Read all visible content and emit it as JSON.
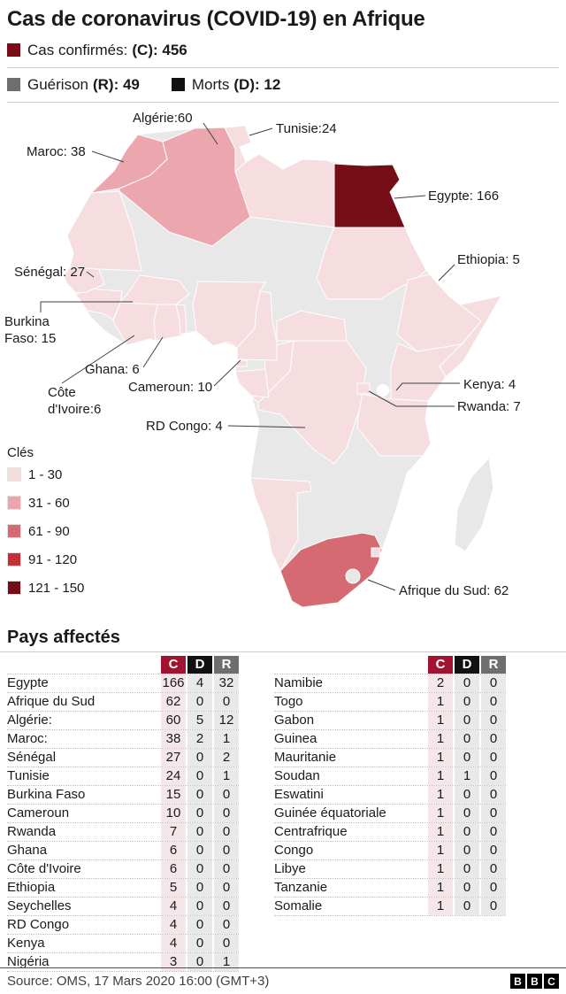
{
  "header": {
    "title": "Cas de coronavirus (COVID-19) en Afrique",
    "stats": [
      {
        "label": "Cas confirmés:",
        "bold": "(C): 456",
        "swatch": "#7d0b16"
      },
      {
        "label": "Guérison",
        "bold": "(R): 49",
        "swatch": "#6e6e6e"
      },
      {
        "label": "Morts",
        "bold": "(D): 12",
        "swatch": "#111111"
      }
    ]
  },
  "map": {
    "labels": [
      {
        "id": "algerie",
        "text": "Algérie:60"
      },
      {
        "id": "tunisie",
        "text": "Tunisie:24"
      },
      {
        "id": "maroc",
        "text": "Maroc: 38"
      },
      {
        "id": "egypte",
        "text": "Egypte: 166"
      },
      {
        "id": "ethiopia",
        "text": "Ethiopia: 5"
      },
      {
        "id": "senegal",
        "text": "Sénégal: 27"
      },
      {
        "id": "burkina",
        "text": "Burkina\nFaso: 15"
      },
      {
        "id": "ghana",
        "text": "Ghana: 6"
      },
      {
        "id": "cote-divoire",
        "text": "Côte\nd'Ivoire:6"
      },
      {
        "id": "cameroun",
        "text": "Cameroun: 10"
      },
      {
        "id": "rd-congo",
        "text": "RD Congo: 4"
      },
      {
        "id": "kenya",
        "text": "Kenya: 4"
      },
      {
        "id": "rwanda",
        "text": "Rwanda: 7"
      },
      {
        "id": "afrique-du-sud",
        "text": "Afrique du Sud: 62"
      }
    ]
  },
  "legend": {
    "title": "Clés",
    "items": [
      {
        "range": "1 - 30",
        "min": 1,
        "max": 30,
        "color": "#f5dde0"
      },
      {
        "range": "31 - 60",
        "min": 31,
        "max": 60,
        "color": "#eba6ae"
      },
      {
        "range": "61 - 90",
        "min": 61,
        "max": 90,
        "color": "#d66a72"
      },
      {
        "range": "91 - 120",
        "min": 91,
        "max": 120,
        "color": "#c52f38"
      },
      {
        "range": "121 - 150",
        "min": 121,
        "max": 150,
        "color": "#740d15"
      }
    ]
  },
  "table_section": {
    "title": "Pays affectés",
    "columns": [
      "C",
      "D",
      "R"
    ],
    "header_colors": [
      "#a01431",
      "#111111",
      "#6e6e6e"
    ],
    "left_rows": [
      {
        "country": "Egypte",
        "c": 166,
        "d": 4,
        "r": 32
      },
      {
        "country": "Afrique du Sud",
        "c": 62,
        "d": 0,
        "r": 0
      },
      {
        "country": "Algérie:",
        "c": 60,
        "d": 5,
        "r": 12
      },
      {
        "country": "Maroc:",
        "c": 38,
        "d": 2,
        "r": 1
      },
      {
        "country": "Sénégal",
        "c": 27,
        "d": 0,
        "r": 2
      },
      {
        "country": "Tunisie",
        "c": 24,
        "d": 0,
        "r": 1
      },
      {
        "country": "Burkina Faso",
        "c": 15,
        "d": 0,
        "r": 0
      },
      {
        "country": "Cameroun",
        "c": 10,
        "d": 0,
        "r": 0
      },
      {
        "country": "Rwanda",
        "c": 7,
        "d": 0,
        "r": 0
      },
      {
        "country": "Ghana",
        "c": 6,
        "d": 0,
        "r": 0
      },
      {
        "country": "Côte d'Ivoire",
        "c": 6,
        "d": 0,
        "r": 0
      },
      {
        "country": "Ethiopia",
        "c": 5,
        "d": 0,
        "r": 0
      },
      {
        "country": "Seychelles",
        "c": 4,
        "d": 0,
        "r": 0
      },
      {
        "country": "RD Congo",
        "c": 4,
        "d": 0,
        "r": 0
      },
      {
        "country": "Kenya",
        "c": 4,
        "d": 0,
        "r": 0
      },
      {
        "country": "Nigéria",
        "c": 3,
        "d": 0,
        "r": 1
      }
    ],
    "right_rows": [
      {
        "country": "Namibie",
        "c": 2,
        "d": 0,
        "r": 0
      },
      {
        "country": "Togo",
        "c": 1,
        "d": 0,
        "r": 0
      },
      {
        "country": "Gabon",
        "c": 1,
        "d": 0,
        "r": 0
      },
      {
        "country": "Guinea",
        "c": 1,
        "d": 0,
        "r": 0
      },
      {
        "country": "Mauritanie",
        "c": 1,
        "d": 0,
        "r": 0
      },
      {
        "country": "Soudan",
        "c": 1,
        "d": 1,
        "r": 0
      },
      {
        "country": "Eswatini",
        "c": 1,
        "d": 0,
        "r": 0
      },
      {
        "country": "Guinée équatoriale",
        "c": 1,
        "d": 0,
        "r": 0
      },
      {
        "country": "Centrafrique",
        "c": 1,
        "d": 0,
        "r": 0
      },
      {
        "country": "Congo",
        "c": 1,
        "d": 0,
        "r": 0
      },
      {
        "country": "Libye",
        "c": 1,
        "d": 0,
        "r": 0
      },
      {
        "country": "Tanzanie",
        "c": 1,
        "d": 0,
        "r": 0
      },
      {
        "country": "Somalie",
        "c": 1,
        "d": 0,
        "r": 0
      }
    ]
  },
  "footer": {
    "source": "Source: OMS, 17 Mars 2020  16:00 (GMT+3)",
    "logo": [
      "B",
      "B",
      "C"
    ]
  },
  "chart_data": {
    "type": "heatmap",
    "subtype": "choropleth-map-of-africa",
    "title": "Cas de coronavirus (COVID-19) en Afrique",
    "totals": {
      "confirmed": 456,
      "recovered": 49,
      "deaths": 12
    },
    "legend_title": "Clés",
    "legend_bins": [
      {
        "range": "1 - 30",
        "color": "#f5dde0"
      },
      {
        "range": "31 - 60",
        "color": "#eba6ae"
      },
      {
        "range": "61 - 90",
        "color": "#d66a72"
      },
      {
        "range": "91 - 120",
        "color": "#c52f38"
      },
      {
        "range": "121 - 150",
        "color": "#740d15"
      }
    ],
    "countries": [
      {
        "name": "Egypte",
        "confirmed": 166,
        "deaths": 4,
        "recovered": 32
      },
      {
        "name": "Afrique du Sud",
        "confirmed": 62,
        "deaths": 0,
        "recovered": 0
      },
      {
        "name": "Algérie",
        "confirmed": 60,
        "deaths": 5,
        "recovered": 12
      },
      {
        "name": "Maroc",
        "confirmed": 38,
        "deaths": 2,
        "recovered": 1
      },
      {
        "name": "Sénégal",
        "confirmed": 27,
        "deaths": 0,
        "recovered": 2
      },
      {
        "name": "Tunisie",
        "confirmed": 24,
        "deaths": 0,
        "recovered": 1
      },
      {
        "name": "Burkina Faso",
        "confirmed": 15,
        "deaths": 0,
        "recovered": 0
      },
      {
        "name": "Cameroun",
        "confirmed": 10,
        "deaths": 0,
        "recovered": 0
      },
      {
        "name": "Rwanda",
        "confirmed": 7,
        "deaths": 0,
        "recovered": 0
      },
      {
        "name": "Ghana",
        "confirmed": 6,
        "deaths": 0,
        "recovered": 0
      },
      {
        "name": "Côte d'Ivoire",
        "confirmed": 6,
        "deaths": 0,
        "recovered": 0
      },
      {
        "name": "Ethiopia",
        "confirmed": 5,
        "deaths": 0,
        "recovered": 0
      },
      {
        "name": "Seychelles",
        "confirmed": 4,
        "deaths": 0,
        "recovered": 0
      },
      {
        "name": "RD Congo",
        "confirmed": 4,
        "deaths": 0,
        "recovered": 0
      },
      {
        "name": "Kenya",
        "confirmed": 4,
        "deaths": 0,
        "recovered": 0
      },
      {
        "name": "Nigéria",
        "confirmed": 3,
        "deaths": 0,
        "recovered": 1
      },
      {
        "name": "Namibie",
        "confirmed": 2,
        "deaths": 0,
        "recovered": 0
      },
      {
        "name": "Togo",
        "confirmed": 1,
        "deaths": 0,
        "recovered": 0
      },
      {
        "name": "Gabon",
        "confirmed": 1,
        "deaths": 0,
        "recovered": 0
      },
      {
        "name": "Guinea",
        "confirmed": 1,
        "deaths": 0,
        "recovered": 0
      },
      {
        "name": "Mauritanie",
        "confirmed": 1,
        "deaths": 0,
        "recovered": 0
      },
      {
        "name": "Soudan",
        "confirmed": 1,
        "deaths": 1,
        "recovered": 0
      },
      {
        "name": "Eswatini",
        "confirmed": 1,
        "deaths": 0,
        "recovered": 0
      },
      {
        "name": "Guinée équatoriale",
        "confirmed": 1,
        "deaths": 0,
        "recovered": 0
      },
      {
        "name": "Centrafrique",
        "confirmed": 1,
        "deaths": 0,
        "recovered": 0
      },
      {
        "name": "Congo",
        "confirmed": 1,
        "deaths": 0,
        "recovered": 0
      },
      {
        "name": "Libye",
        "confirmed": 1,
        "deaths": 0,
        "recovered": 0
      },
      {
        "name": "Tanzanie",
        "confirmed": 1,
        "deaths": 0,
        "recovered": 0
      },
      {
        "name": "Somalie",
        "confirmed": 1,
        "deaths": 0,
        "recovered": 0
      }
    ]
  }
}
